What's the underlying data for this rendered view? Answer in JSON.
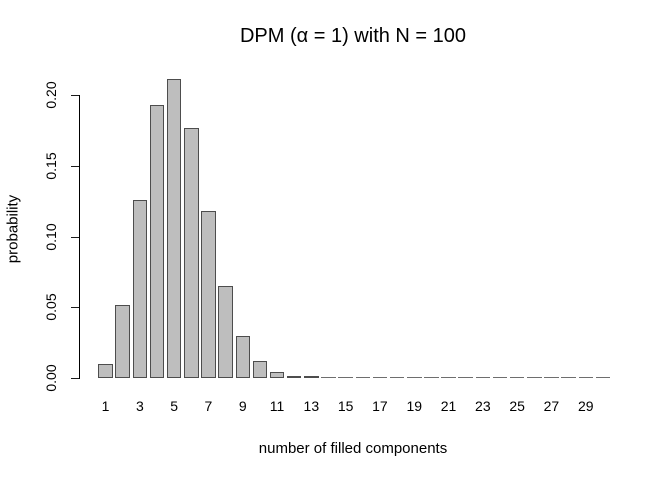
{
  "chart_data": {
    "type": "bar",
    "title": "DPM (α = 1) with N = 100",
    "xlabel": "number of filled components",
    "ylabel": "probability",
    "categories": [
      1,
      2,
      3,
      4,
      5,
      6,
      7,
      8,
      9,
      10,
      11,
      12,
      13,
      14,
      15,
      16,
      17,
      18,
      19,
      20,
      21,
      22,
      23,
      24,
      25,
      26,
      27,
      28,
      29,
      30
    ],
    "values": [
      0.01,
      0.052,
      0.126,
      0.193,
      0.211,
      0.177,
      0.118,
      0.065,
      0.03,
      0.012,
      0.0045,
      0.0016,
      0.0009,
      0.0002,
      5e-05,
      1e-05,
      2e-06,
      0,
      0,
      0,
      0,
      0,
      0,
      0,
      0,
      0,
      0,
      0,
      0,
      0
    ],
    "ylim": [
      0,
      0.2
    ],
    "yticks": [
      0.0,
      0.05,
      0.1,
      0.15,
      0.2
    ],
    "ytick_labels": [
      "0.00",
      "0.05",
      "0.10",
      "0.15",
      "0.20"
    ],
    "xtick_labels": [
      "1",
      "3",
      "5",
      "7",
      "9",
      "11",
      "13",
      "15",
      "17",
      "19",
      "21",
      "23",
      "25",
      "27",
      "29"
    ],
    "grid": false,
    "legend": false,
    "colors": {
      "bar_fill": "#bebebe",
      "bar_border": "#4d4d4d",
      "zero_bar_dash": "#6e6e6e",
      "axis": "#000000",
      "background": "#ffffff",
      "text": "#000000"
    }
  }
}
